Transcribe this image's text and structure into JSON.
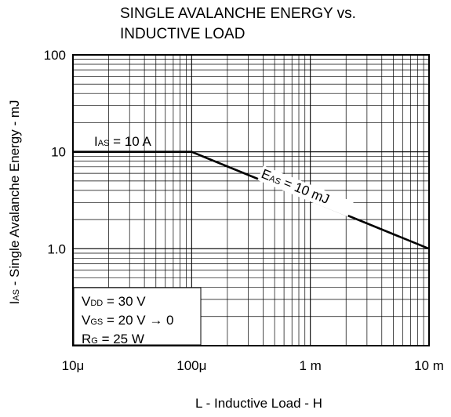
{
  "chart_data": {
    "type": "line",
    "title_lines": [
      "SINGLE AVALANCHE ENERGY vs.",
      "INDUCTIVE LOAD"
    ],
    "xlabel": "L - Inductive Load - H",
    "ylabel": "I",
    "ylabel_sub": "AS",
    "ylabel_rest": " - Single Avalanche Energy - mJ",
    "x_scale": "log",
    "y_scale": "log",
    "xlim": [
      1e-05,
      0.01
    ],
    "ylim": [
      0.1,
      100
    ],
    "x_tick_labels": [
      {
        "value": 1e-05,
        "label": "10μ"
      },
      {
        "value": 0.0001,
        "label": "100μ"
      },
      {
        "value": 0.001,
        "label": "1 m"
      },
      {
        "value": 0.01,
        "label": "10 m"
      }
    ],
    "y_tick_labels": [
      {
        "value": 100,
        "label": "100"
      },
      {
        "value": 10,
        "label": "10"
      },
      {
        "value": 1,
        "label": "1.0"
      }
    ],
    "grid": true,
    "series": [
      {
        "x": [
          1e-05,
          0.0001,
          0.01
        ],
        "y": [
          10,
          10,
          1
        ]
      }
    ],
    "annotations": {
      "ias": {
        "main": "I",
        "sub": "AS",
        "rest": " = 10 A"
      },
      "eas": {
        "main": "E",
        "sub": "AS",
        "rest": " = 10 mJ"
      },
      "conditions": [
        {
          "main": "V",
          "sub": "DD",
          "rest": " = 30 V"
        },
        {
          "main": "V",
          "sub": "GS",
          "rest": " = 20 V → 0"
        },
        {
          "main": "R",
          "sub": "G",
          "rest": " = 25 W"
        }
      ]
    },
    "colors": {
      "line": "#000000",
      "grid": "#000000",
      "background": "#ffffff"
    }
  }
}
